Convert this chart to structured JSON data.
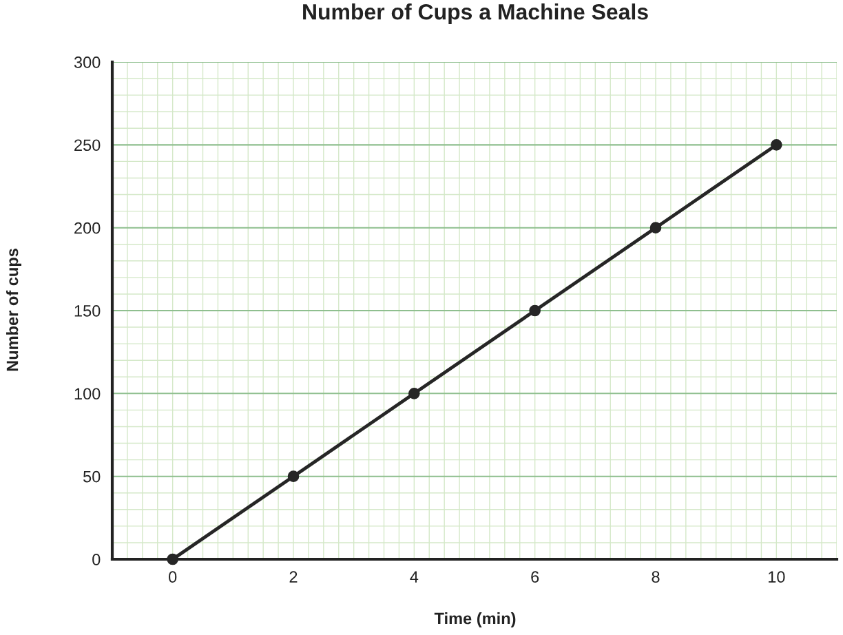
{
  "chart_data": {
    "type": "line",
    "title": "Number of Cups a Machine Seals",
    "xlabel": "Time (min)",
    "ylabel": "Number of cups",
    "x": [
      0,
      2,
      4,
      6,
      8,
      10
    ],
    "series": [
      {
        "color": "#262626",
        "values": [
          0,
          50,
          100,
          150,
          200,
          250
        ]
      }
    ],
    "xlim": [
      -1,
      11
    ],
    "xticks": [
      0,
      2,
      4,
      6,
      8,
      10
    ],
    "ylim": [
      0,
      300
    ],
    "yticks": [
      0,
      50,
      100,
      150,
      200,
      250,
      300
    ],
    "grid": true,
    "marker": "circle",
    "line_style": "solid"
  }
}
